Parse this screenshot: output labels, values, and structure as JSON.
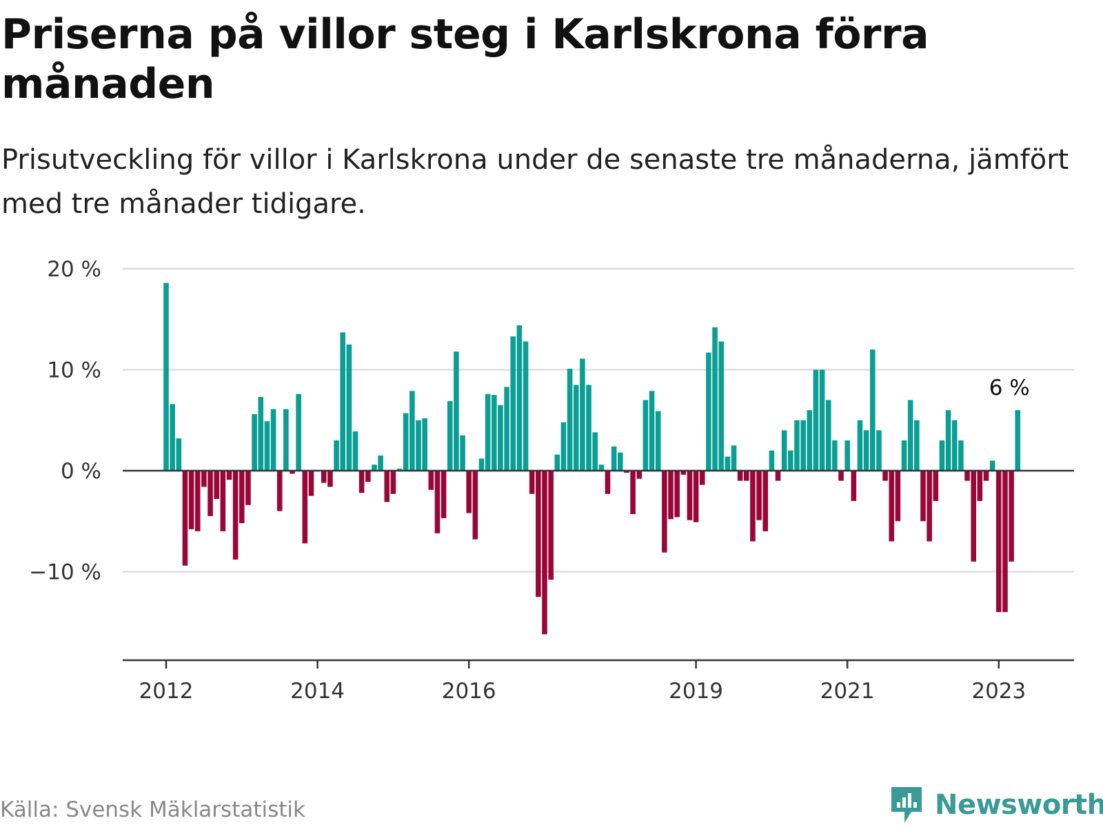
{
  "title": "Priserna på villor steg i Karlskrona förra månaden",
  "subtitle": "Prisutveckling för villor i Karlskrona under de senaste tre månaderna, jämfört med tre månader tidigare.",
  "source": "Källa: Svensk Mäklarstatistik",
  "brand": "Newsworthy",
  "colors": {
    "positive": "#0a9e95",
    "negative": "#990738",
    "grid": "#dddddd",
    "axis": "#333333",
    "brand": "#3a9a96"
  },
  "chart_data": {
    "type": "bar",
    "title": "Priserna på villor steg i Karlskrona förra månaden",
    "subtitle": "Prisutveckling för villor i Karlskrona under de senaste tre månaderna, jämfört med tre månader tidigare.",
    "start": "2012-01",
    "frequency": "monthly",
    "unit": "%",
    "ylim": [
      -18.5,
      20
    ],
    "yticks": [
      20,
      10,
      0,
      -10
    ],
    "ytick_labels": [
      "20 %",
      "10 %",
      "0 %",
      "−10 %"
    ],
    "xtick_labels": [
      "2012",
      "2014",
      "2016",
      "2019",
      "2021",
      "2023"
    ],
    "xtick_months": [
      "2012-01",
      "2014-01",
      "2016-01",
      "2019-01",
      "2021-01",
      "2023-01"
    ],
    "grid": true,
    "last_label": "6 %",
    "values": [
      18.6,
      6.6,
      3.2,
      -9.4,
      -5.8,
      -6.0,
      -1.6,
      -4.5,
      -2.8,
      -6.0,
      -0.9,
      -8.8,
      -5.2,
      -3.4,
      5.6,
      7.3,
      4.9,
      6.1,
      -4.0,
      6.1,
      -0.3,
      7.6,
      -7.2,
      -2.5,
      0.0,
      -1.2,
      -1.6,
      3.0,
      13.7,
      12.5,
      3.9,
      -2.2,
      -1.1,
      0.6,
      1.5,
      -3.1,
      -2.3,
      0.2,
      5.7,
      7.9,
      5.0,
      5.2,
      -1.9,
      -6.2,
      -4.7,
      6.9,
      11.8,
      3.5,
      -4.2,
      -6.8,
      1.2,
      7.6,
      7.5,
      6.5,
      8.3,
      13.3,
      14.4,
      12.8,
      -2.3,
      -12.5,
      -16.2,
      -10.8,
      1.6,
      4.8,
      10.1,
      8.5,
      11.1,
      8.5,
      3.8,
      0.6,
      -2.3,
      2.4,
      1.8,
      -0.2,
      -4.3,
      -0.8,
      7.0,
      7.9,
      5.9,
      -8.1,
      -4.8,
      -4.6,
      -0.4,
      -4.9,
      -5.1,
      -1.4,
      11.7,
      14.2,
      12.8,
      1.4,
      2.5,
      -1.0,
      -1.0,
      -7.0,
      -4.9,
      -6.0,
      2.0,
      -1.0,
      4.0,
      2.0,
      5.0,
      5.0,
      6.0,
      10.0,
      10.0,
      7.0,
      3.0,
      -1.0,
      3.0,
      -3.0,
      5.0,
      4.0,
      12.0,
      4.0,
      -1.0,
      -7.0,
      -5.0,
      3.0,
      7.0,
      5.0,
      -5.0,
      -7.0,
      -3.0,
      3.0,
      6.0,
      5.0,
      3.0,
      -1.0,
      -9.0,
      -3.0,
      -1.0,
      1.0,
      -14.0,
      -14.0,
      -9.0,
      6.0
    ]
  }
}
